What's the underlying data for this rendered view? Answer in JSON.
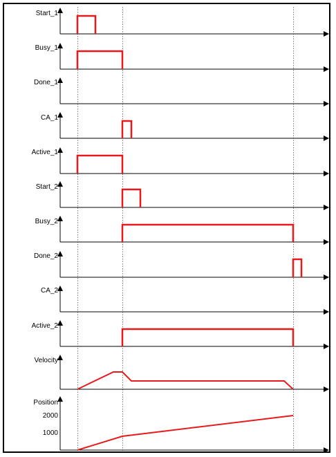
{
  "signals": [
    {
      "label": "Start_1",
      "axis": "1"
    },
    {
      "label": "Busy_1",
      "axis": "1"
    },
    {
      "label": "Done_1",
      "axis": "1"
    },
    {
      "label": "CA_1",
      "axis": "1"
    },
    {
      "label": "Active_1",
      "axis": "1"
    },
    {
      "label": "Start_2",
      "axis": "2"
    },
    {
      "label": "Busy_2",
      "axis": "2"
    },
    {
      "label": "Done_2",
      "axis": "2"
    },
    {
      "label": "CA_2",
      "axis": "2"
    },
    {
      "label": "Active_2",
      "axis": "2"
    },
    {
      "label": "Velocity",
      "axis": ""
    },
    {
      "label": "Position",
      "axis": ""
    }
  ],
  "position_ticks": [
    "2000",
    "1000"
  ],
  "colors": {
    "trace": "#e8191a",
    "axis": "#000000",
    "frame": "#000000"
  }
}
